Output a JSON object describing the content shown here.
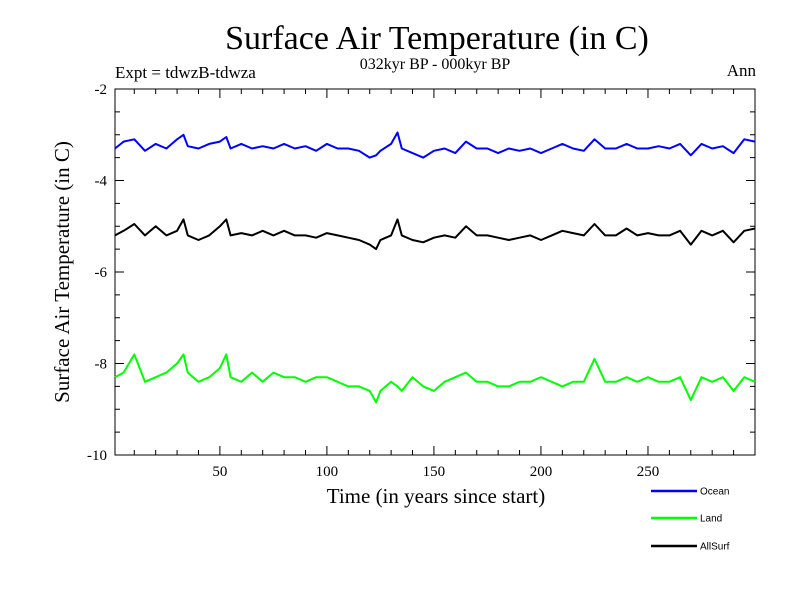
{
  "chart_data": {
    "type": "line",
    "title": "Surface Air Temperature (in C)",
    "subtitle": "032kyr BP - 000kyr BP",
    "experiment": "Expt = tdwzB-tdwza",
    "season": "Ann",
    "xlabel": "Time (in years since start)",
    "ylabel": "Surface Air Temperature (in C)",
    "xlim": [
      1,
      300
    ],
    "ylim": [
      -10,
      -2
    ],
    "xticks": [
      50,
      100,
      150,
      200,
      250
    ],
    "yticks": [
      -2,
      -4,
      -6,
      -8,
      -10
    ],
    "grid": false,
    "legend_position": "bottom-right",
    "x": [
      1,
      5,
      10,
      15,
      20,
      25,
      30,
      33,
      35,
      40,
      45,
      50,
      53,
      55,
      60,
      65,
      70,
      75,
      80,
      85,
      90,
      95,
      100,
      105,
      110,
      115,
      120,
      123,
      125,
      130,
      133,
      135,
      140,
      145,
      150,
      155,
      160,
      165,
      170,
      175,
      180,
      185,
      190,
      195,
      200,
      205,
      210,
      215,
      220,
      225,
      230,
      235,
      240,
      245,
      250,
      255,
      260,
      265,
      270,
      275,
      280,
      285,
      290,
      295,
      300
    ],
    "series": [
      {
        "name": "Ocean",
        "color": "#0000ff",
        "values": [
          -3.3,
          -3.15,
          -3.1,
          -3.35,
          -3.2,
          -3.3,
          -3.1,
          -3.0,
          -3.25,
          -3.3,
          -3.2,
          -3.15,
          -3.05,
          -3.3,
          -3.2,
          -3.3,
          -3.25,
          -3.3,
          -3.2,
          -3.3,
          -3.25,
          -3.35,
          -3.2,
          -3.3,
          -3.3,
          -3.35,
          -3.5,
          -3.45,
          -3.35,
          -3.2,
          -2.95,
          -3.3,
          -3.4,
          -3.5,
          -3.35,
          -3.3,
          -3.4,
          -3.15,
          -3.3,
          -3.3,
          -3.4,
          -3.3,
          -3.35,
          -3.3,
          -3.4,
          -3.3,
          -3.2,
          -3.3,
          -3.35,
          -3.1,
          -3.3,
          -3.3,
          -3.2,
          -3.3,
          -3.3,
          -3.25,
          -3.3,
          -3.2,
          -3.45,
          -3.2,
          -3.3,
          -3.25,
          -3.4,
          -3.1,
          -3.15
        ]
      },
      {
        "name": "Land",
        "color": "#00ff00",
        "values": [
          -8.3,
          -8.2,
          -7.8,
          -8.4,
          -8.3,
          -8.2,
          -8.0,
          -7.8,
          -8.2,
          -8.4,
          -8.3,
          -8.1,
          -7.8,
          -8.3,
          -8.4,
          -8.2,
          -8.4,
          -8.2,
          -8.3,
          -8.3,
          -8.4,
          -8.3,
          -8.3,
          -8.4,
          -8.5,
          -8.5,
          -8.6,
          -8.85,
          -8.6,
          -8.4,
          -8.5,
          -8.6,
          -8.3,
          -8.5,
          -8.6,
          -8.4,
          -8.3,
          -8.2,
          -8.4,
          -8.4,
          -8.5,
          -8.5,
          -8.4,
          -8.4,
          -8.3,
          -8.4,
          -8.5,
          -8.4,
          -8.4,
          -7.9,
          -8.4,
          -8.4,
          -8.3,
          -8.4,
          -8.3,
          -8.4,
          -8.4,
          -8.3,
          -8.8,
          -8.3,
          -8.4,
          -8.3,
          -8.6,
          -8.3,
          -8.4
        ]
      },
      {
        "name": "AllSurf",
        "color": "#000000",
        "values": [
          -5.2,
          -5.1,
          -4.95,
          -5.2,
          -5.0,
          -5.2,
          -5.1,
          -4.85,
          -5.2,
          -5.3,
          -5.2,
          -5.0,
          -4.85,
          -5.2,
          -5.15,
          -5.2,
          -5.1,
          -5.2,
          -5.1,
          -5.2,
          -5.2,
          -5.25,
          -5.15,
          -5.2,
          -5.25,
          -5.3,
          -5.4,
          -5.5,
          -5.3,
          -5.2,
          -4.85,
          -5.2,
          -5.3,
          -5.35,
          -5.25,
          -5.2,
          -5.25,
          -5.0,
          -5.2,
          -5.2,
          -5.25,
          -5.3,
          -5.25,
          -5.2,
          -5.3,
          -5.2,
          -5.1,
          -5.15,
          -5.2,
          -4.95,
          -5.2,
          -5.2,
          -5.05,
          -5.2,
          -5.15,
          -5.2,
          -5.2,
          -5.1,
          -5.4,
          -5.1,
          -5.2,
          -5.1,
          -5.35,
          -5.1,
          -5.05
        ]
      }
    ]
  }
}
